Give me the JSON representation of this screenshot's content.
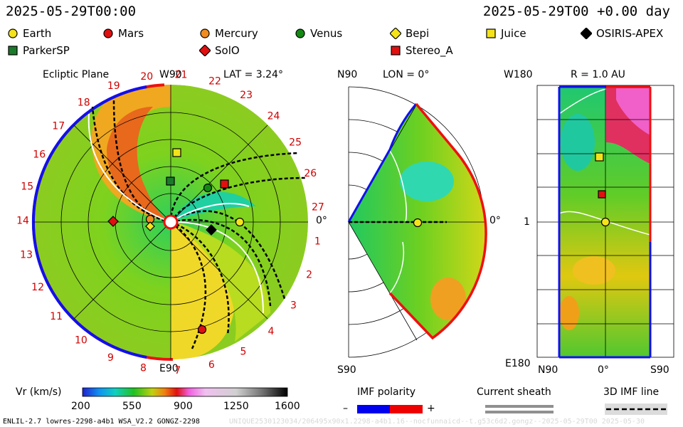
{
  "header": {
    "date_left": "2025-05-29T00:00",
    "date_right": "2025-05-29T00 +0.00 day"
  },
  "legend": [
    {
      "name": "Earth",
      "color": "#f5e31a",
      "marker": "circle"
    },
    {
      "name": "Mars",
      "color": "#e01010",
      "marker": "circle"
    },
    {
      "name": "Mercury",
      "color": "#f08c20",
      "marker": "circle"
    },
    {
      "name": "Venus",
      "color": "#128a12",
      "marker": "circle"
    },
    {
      "name": "Bepi",
      "color": "#f5e31a",
      "marker": "diamond"
    },
    {
      "name": "Juice",
      "color": "#f5e31a",
      "marker": "square"
    },
    {
      "name": "OSIRIS-APEX",
      "color": "#000000",
      "marker": "diamond"
    },
    {
      "name": "ParkerSP",
      "color": "#1a7a2a",
      "marker": "square"
    },
    {
      "name": "SolO",
      "color": "#e01010",
      "marker": "diamond"
    },
    {
      "name": "Stereo_A",
      "color": "#e01010",
      "marker": "square"
    }
  ],
  "panels": {
    "ecliptic": {
      "title": "Ecliptic Plane",
      "lat": "LAT = 3.24°",
      "top_label": "W90",
      "bottom_label": "E90",
      "right_label": "0°",
      "carrington": [
        "1",
        "2",
        "3",
        "4",
        "5",
        "6",
        "7",
        "8",
        "9",
        "10",
        "11",
        "12",
        "13",
        "14",
        "15",
        "16",
        "17",
        "18",
        "19",
        "20",
        "21",
        "22",
        "23",
        "24",
        "25",
        "26",
        "27"
      ]
    },
    "meridional": {
      "title": "LON = 0°",
      "top_label": "N90",
      "bottom_label": "S90",
      "right_label": "0°"
    },
    "radial": {
      "title": "R = 1.0 AU",
      "top_label": "W180",
      "bottom_label": "E180",
      "left_label": "1",
      "x_labels": [
        "N90",
        "0°",
        "S90"
      ]
    }
  },
  "colorbar": {
    "label": "Vr (km/s)",
    "ticks": [
      "200",
      "550",
      "900",
      "1250",
      "1600"
    ]
  },
  "indicators": {
    "imf_polarity": {
      "label": "IMF polarity",
      "minus": "–",
      "plus": "+",
      "neg_color": "#0000ee",
      "pos_color": "#ee0000"
    },
    "current_sheath": {
      "label": "Current sheath"
    },
    "imf_line": {
      "label": "3D IMF line"
    }
  },
  "footer": {
    "model": "ENLIL-2.7 lowres-2298-a4b1 WSA_V2.2 GONGZ-2298",
    "faint": "UNIQUE2530123034/206495x90x1.2298-a4b1.16--nocfunnaicd--t.g53c6d2.gongz--2025-05-29T00 2025-05-30"
  },
  "colors": {
    "slow": "#3cbf34",
    "fast": "#f0c814",
    "cme": "#e05018",
    "boundary_neg": "#1010ee",
    "boundary_pos": "#ee1010"
  }
}
